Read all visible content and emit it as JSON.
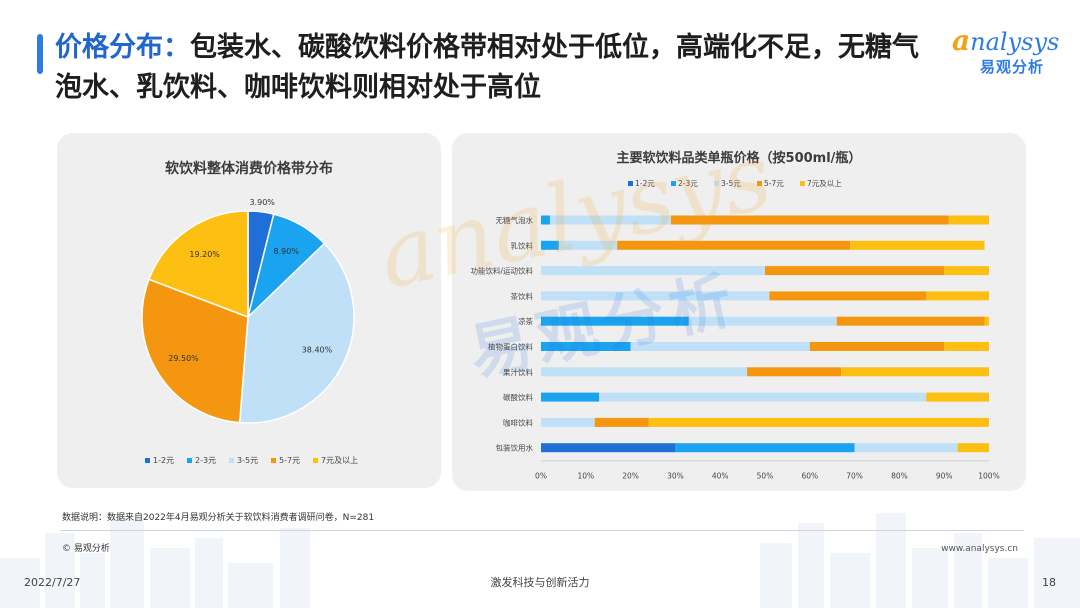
{
  "header": {
    "title_highlight": "价格分布：",
    "title_rest": "包装水、碳酸饮料价格带相对处于低位，高端化不足，无糖气泡水、乳饮料、咖啡饮料则相对处于高位"
  },
  "logo": {
    "brand_first": "a",
    "brand_rest": "nalysys",
    "cn": "易观分析"
  },
  "watermark": {
    "brand": "analysys",
    "cn": "易观分析"
  },
  "colors": {
    "c1": "#1f6fd6",
    "c2": "#1aa3ef",
    "c3": "#bfe0f7",
    "c4": "#f4960f",
    "c5": "#fdbf12",
    "accent": "#2f7be0",
    "panel": "#efefef"
  },
  "chart_data": [
    {
      "type": "pie",
      "title": "软饮料整体消费价格带分布",
      "categories": [
        "1-2元",
        "2-3元",
        "3-5元",
        "5-7元",
        "7元及以上"
      ],
      "values": [
        3.9,
        8.9,
        38.4,
        29.5,
        19.2
      ],
      "labels": [
        "3.90%",
        "8.90%",
        "38.40%",
        "29.50%",
        "19.20%"
      ],
      "legend": "bottom"
    },
    {
      "type": "bar",
      "orientation": "horizontal",
      "stacked": true,
      "title": "主要软饮料品类单瓶价格（按500ml/瓶）",
      "categories": [
        "无糖气泡水",
        "乳饮料",
        "功能饮料/运动饮料",
        "茶饮料",
        "凉茶",
        "植物蛋白饮料",
        "果汁饮料",
        "碳酸饮料",
        "咖啡饮料",
        "包装饮用水"
      ],
      "series": [
        {
          "name": "1-2元",
          "values": [
            0,
            0,
            0,
            0,
            0,
            0,
            0,
            0,
            0,
            30
          ]
        },
        {
          "name": "2-3元",
          "values": [
            2,
            4,
            0,
            0,
            33,
            20,
            0,
            13,
            0,
            40
          ]
        },
        {
          "name": "3-5元",
          "values": [
            27,
            13,
            50,
            51,
            33,
            40,
            46,
            73,
            12,
            23
          ]
        },
        {
          "name": "5-7元",
          "values": [
            62,
            52,
            40,
            35,
            33,
            30,
            21,
            0,
            12,
            0
          ]
        },
        {
          "name": "7元及以上",
          "values": [
            9,
            30,
            10,
            14,
            1,
            10,
            33,
            14,
            76,
            7
          ]
        }
      ],
      "xlim": [
        0,
        100
      ],
      "xticks": [
        "0%",
        "10%",
        "20%",
        "30%",
        "40%",
        "50%",
        "60%",
        "70%",
        "80%",
        "90%",
        "100%"
      ],
      "legend": "top",
      "grid": false
    }
  ],
  "footer": {
    "note": "数据说明：数据来自2022年4月易观分析关于软饮料消费者调研问卷，N=281",
    "copyright": "© 易观分析",
    "site": "www.analysys.cn",
    "date": "2022/7/27",
    "center": "激发科技与创新活力",
    "page": "18"
  }
}
